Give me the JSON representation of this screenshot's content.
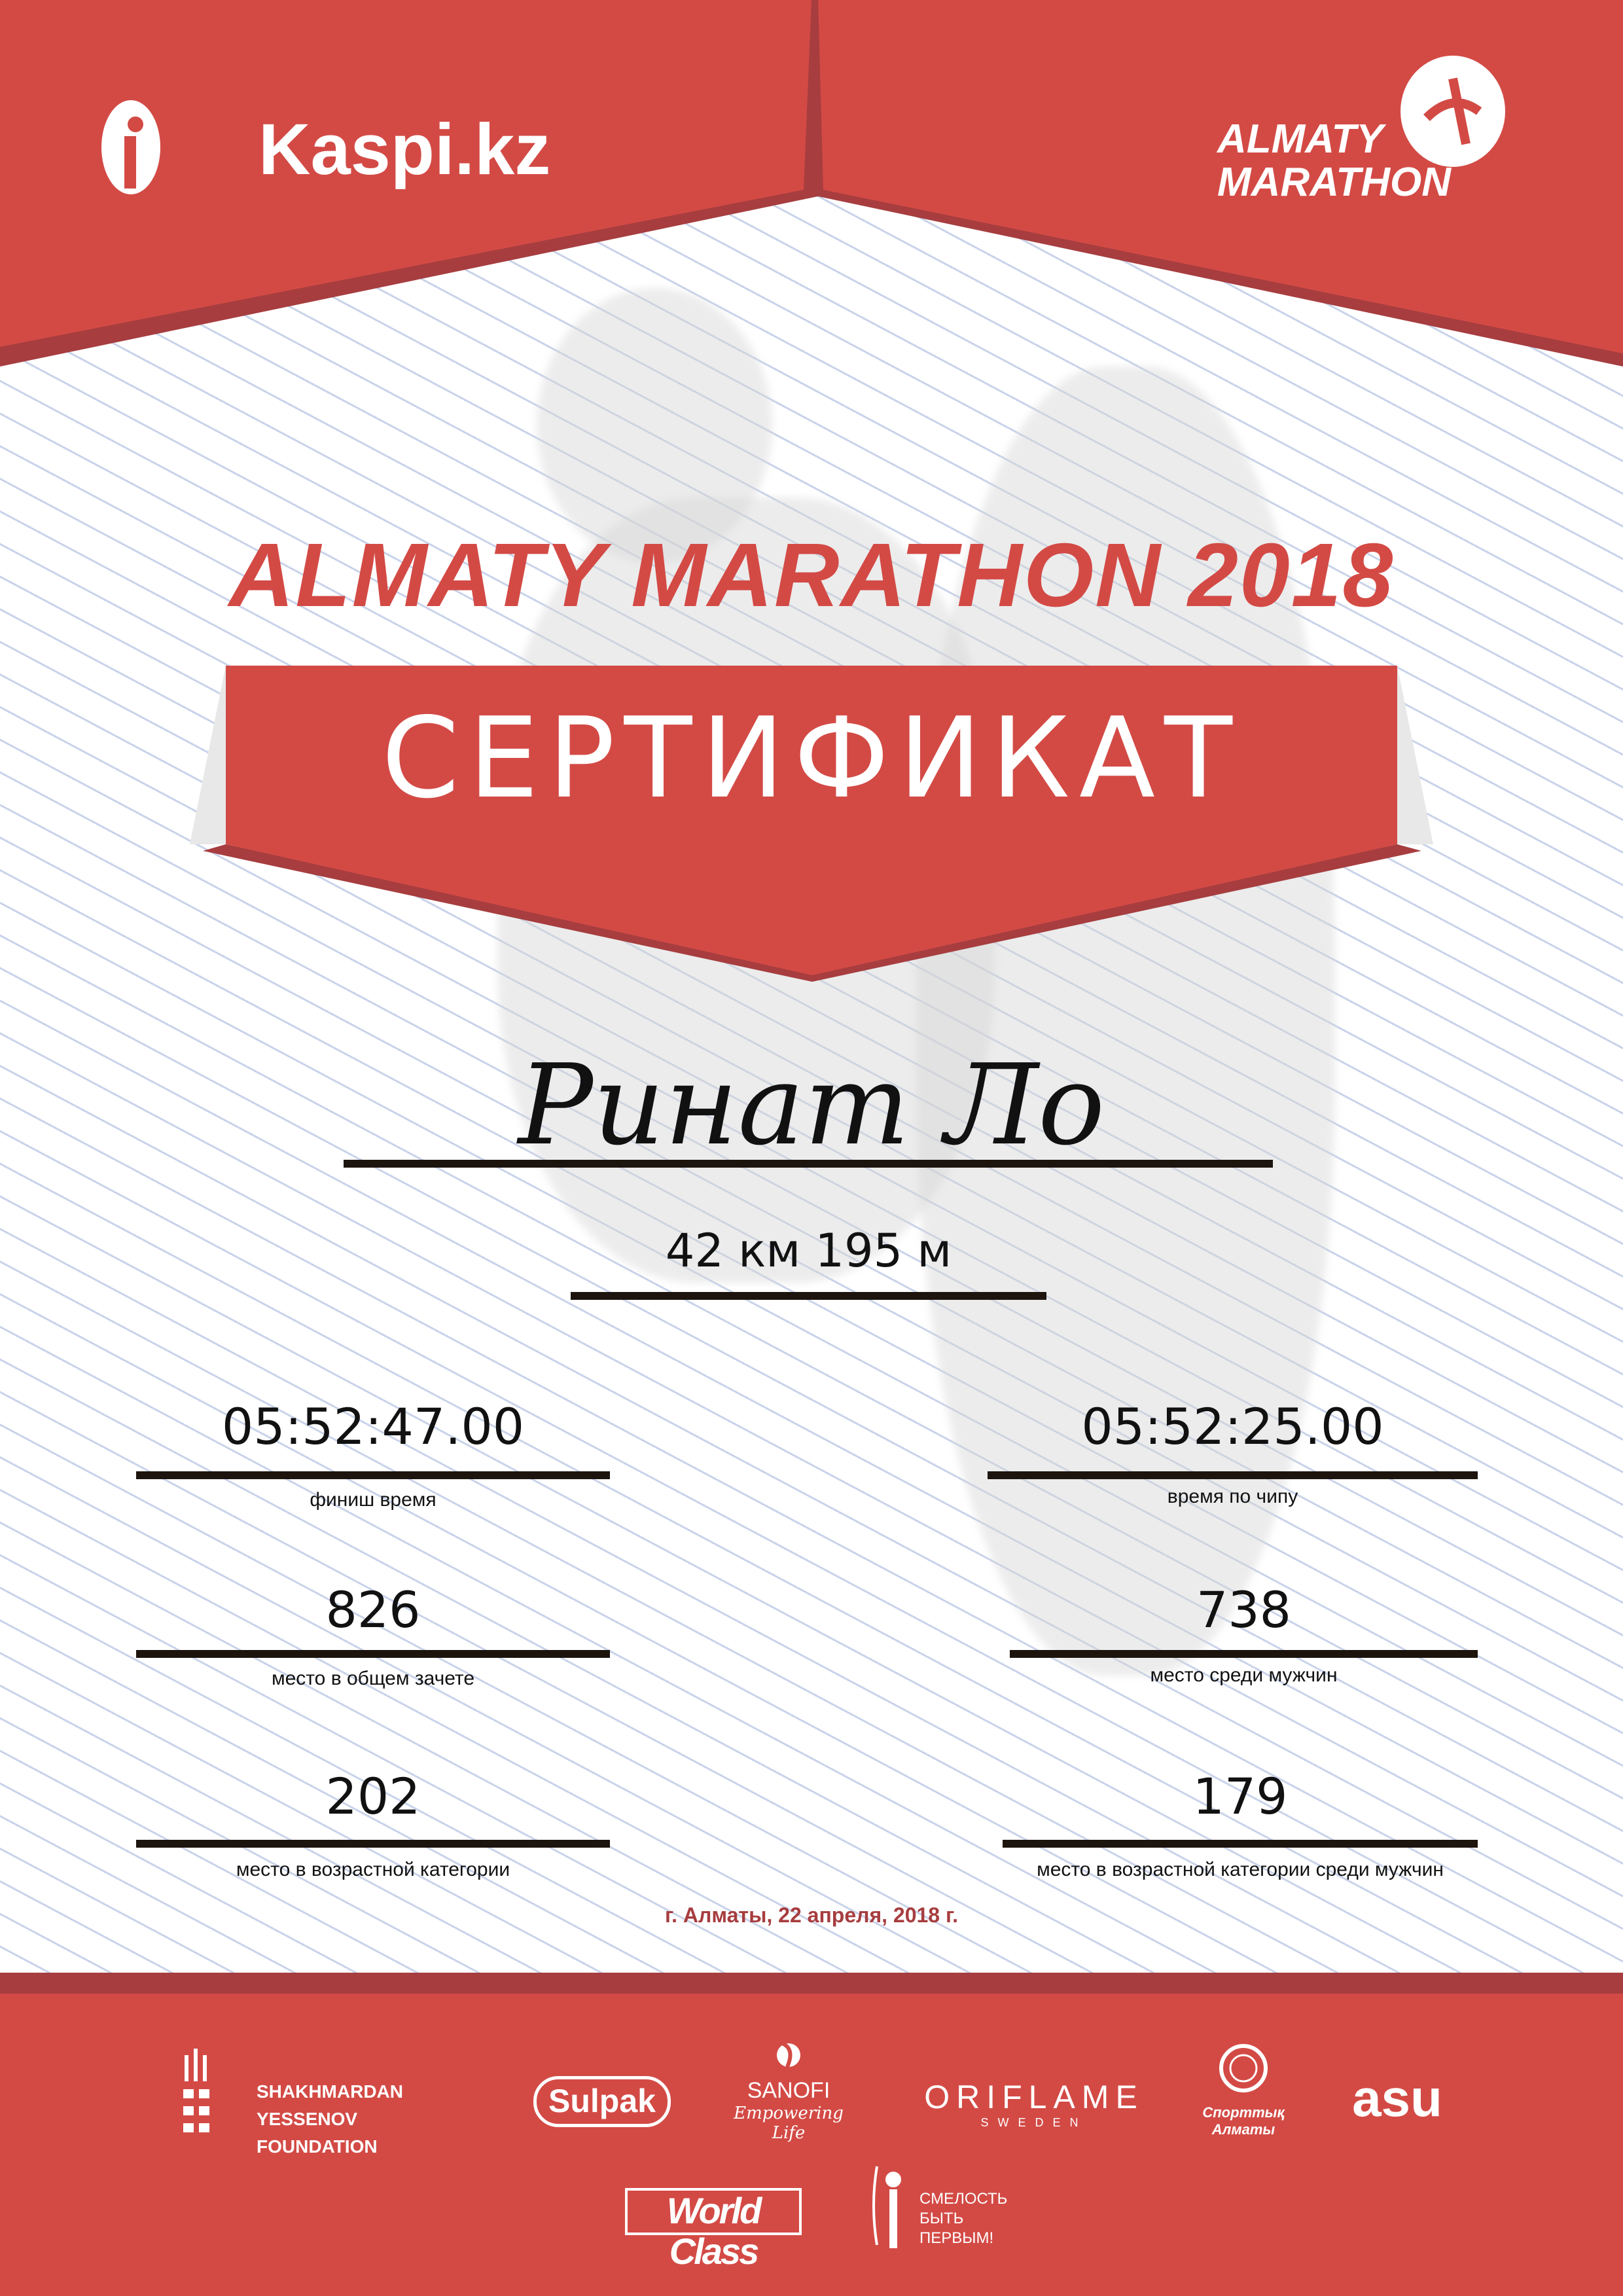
{
  "header": {
    "sponsor_logo": "Kaspi.kz",
    "event_logo_line1": "ALMATY",
    "event_logo_line2": "MARATHON"
  },
  "event_title": "ALMATY MARATHON 2018",
  "certificate_label": "СЕРТИФИКАТ",
  "participant_name": "Ринат Ло",
  "distance": "42 км 195 м",
  "results": {
    "finish_time": {
      "value": "05:52:47.00",
      "label": "финиш время"
    },
    "chip_time": {
      "value": "05:52:25.00",
      "label": "время по чипу"
    },
    "overall_place": {
      "value": "826",
      "label": "место в общем зачете"
    },
    "gender_place": {
      "value": "738",
      "label": "место среди мужчин"
    },
    "age_place": {
      "value": "202",
      "label": "место в возрастной категории"
    },
    "age_gender_place": {
      "value": "179",
      "label": "место в возрастной категории среди мужчин"
    }
  },
  "date_place": "г. Алматы, 22 апреля, 2018 г.",
  "sponsors": [
    "SHAKHMARDAN YESSENOV FOUNDATION",
    "Sulpak",
    "SANOFI",
    "Empowering Life",
    "ORIFLAME",
    "SWEDEN",
    "Спорттық Алматы",
    "asu",
    "World Class",
    "СМЕЛОСТЬ БЫТЬ ПЕРВЫМ!"
  ],
  "colors": {
    "primary_red": "#d34a45",
    "dark_red": "#a73d3f",
    "date_text": "#a73d3f"
  }
}
